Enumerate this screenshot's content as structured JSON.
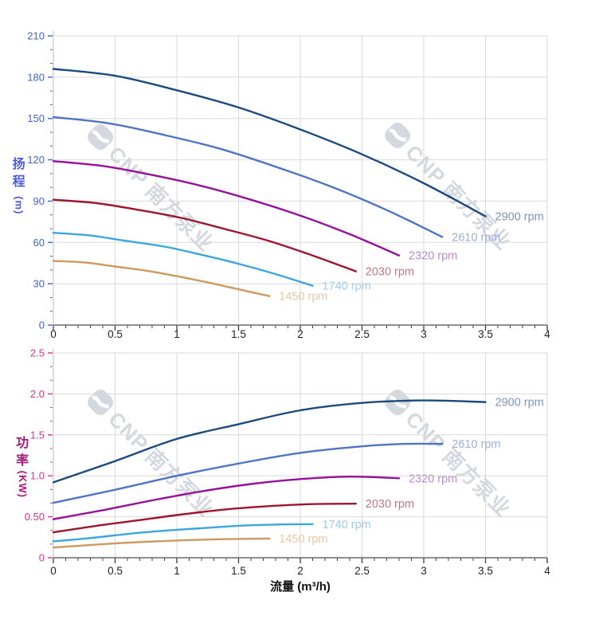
{
  "watermark": {
    "text": "CNP 南方泵业",
    "color": "#d4d8df",
    "logo": "cnp-wave-logo"
  },
  "chart_data": [
    {
      "type": "line",
      "name": "head-vs-flow",
      "title": "",
      "ylabel_chars": [
        "扬",
        "程"
      ],
      "ylabel_unit": "(m)",
      "xlabel": "",
      "axis_color": "#4164d0",
      "title_color": "#4b5bdb",
      "grid": true,
      "legend_position": "curve-ends",
      "xlim": [
        0,
        4
      ],
      "ylim": [
        0,
        210
      ],
      "x_major": 0.5,
      "x_minor_div": 5,
      "y_major": 30,
      "y_minor_div": 3,
      "x_tick_labels": [
        "0",
        "0.5",
        "1",
        "1.5",
        "2",
        "2.5",
        "3",
        "3.5",
        "4"
      ],
      "y_tick_labels": [
        "0",
        "30",
        "60",
        "90",
        "120",
        "150",
        "180",
        "210"
      ],
      "series": [
        {
          "name": "2900 rpm",
          "color": "#1b4a7e",
          "label_color": "#7e95bb",
          "points": [
            [
              0,
              186
            ],
            [
              0.5,
              181
            ],
            [
              1,
              170.5
            ],
            [
              1.5,
              158
            ],
            [
              2,
              142
            ],
            [
              2.5,
              124
            ],
            [
              3,
              103
            ],
            [
              3.5,
              79
            ]
          ]
        },
        {
          "name": "2610 rpm",
          "color": "#4f74c5",
          "label_color": "#a0aedd",
          "points": [
            [
              0,
              151
            ],
            [
              0.45,
              146.5
            ],
            [
              0.9,
              138
            ],
            [
              1.35,
              128
            ],
            [
              1.8,
              115
            ],
            [
              2.25,
              100.5
            ],
            [
              2.7,
              83.5
            ],
            [
              3.15,
              64
            ]
          ]
        },
        {
          "name": "2320 rpm",
          "color": "#970f9b",
          "label_color": "#bb8bce",
          "points": [
            [
              0,
              119
            ],
            [
              0.4,
              115.5
            ],
            [
              0.8,
              109
            ],
            [
              1.2,
              101
            ],
            [
              1.6,
              91
            ],
            [
              2,
              79.5
            ],
            [
              2.4,
              66
            ],
            [
              2.8,
              50.5
            ]
          ]
        },
        {
          "name": "2030 rpm",
          "color": "#9d152f",
          "label_color": "#bd7a86",
          "points": [
            [
              0,
              91
            ],
            [
              0.35,
              88.5
            ],
            [
              0.7,
              83.5
            ],
            [
              1.05,
              77.5
            ],
            [
              1.4,
              69.5
            ],
            [
              1.75,
              61
            ],
            [
              2.1,
              50.5
            ],
            [
              2.45,
              39
            ]
          ]
        },
        {
          "name": "1740 rpm",
          "color": "#3aa6de",
          "label_color": "#9fcbec",
          "points": [
            [
              0,
              67
            ],
            [
              0.3,
              65
            ],
            [
              0.6,
              61
            ],
            [
              0.9,
              57
            ],
            [
              1.2,
              51
            ],
            [
              1.5,
              44.5
            ],
            [
              1.8,
              37
            ],
            [
              2.1,
              28.5
            ]
          ]
        },
        {
          "name": "1450 rpm",
          "color": "#cd9a60",
          "label_color": "#e5c9a2",
          "points": [
            [
              0,
              46.5
            ],
            [
              0.25,
              45.5
            ],
            [
              0.5,
              42.5
            ],
            [
              0.75,
              39.5
            ],
            [
              1,
              35.5
            ],
            [
              1.25,
              31
            ],
            [
              1.5,
              26
            ],
            [
              1.75,
              21
            ]
          ]
        }
      ]
    },
    {
      "type": "line",
      "name": "power-vs-flow",
      "title": "",
      "ylabel_chars": [
        "功",
        "率"
      ],
      "ylabel_unit": "(KW)",
      "xlabel": "流量 (m³/h)",
      "xlabel_color": "#111111",
      "axis_color": "#d8358f",
      "title_color": "#a8187a",
      "grid": true,
      "legend_position": "curve-ends",
      "xlim": [
        0,
        4
      ],
      "ylim": [
        0,
        2.5
      ],
      "x_major": 0.5,
      "x_minor_div": 5,
      "y_major": 0.5,
      "y_minor_div": 3,
      "x_tick_labels": [
        "0",
        "0.5",
        "1",
        "1.5",
        "2",
        "2.5",
        "3",
        "3.5",
        "4"
      ],
      "y_tick_labels": [
        "0",
        "0.50",
        "1.0",
        "1.5",
        "2.0",
        "2.5"
      ],
      "series": [
        {
          "name": "2900 rpm",
          "color": "#1b4a7e",
          "label_color": "#7e95bb",
          "points": [
            [
              0,
              0.92
            ],
            [
              0.5,
              1.18
            ],
            [
              1,
              1.45
            ],
            [
              1.5,
              1.63
            ],
            [
              2,
              1.8
            ],
            [
              2.5,
              1.89
            ],
            [
              3,
              1.92
            ],
            [
              3.5,
              1.9
            ]
          ]
        },
        {
          "name": "2610 rpm",
          "color": "#4f74c5",
          "label_color": "#a0aedd",
          "points": [
            [
              0,
              0.67
            ],
            [
              0.5,
              0.83
            ],
            [
              1,
              1.0
            ],
            [
              1.5,
              1.15
            ],
            [
              2,
              1.28
            ],
            [
              2.5,
              1.36
            ],
            [
              2.85,
              1.39
            ],
            [
              3.15,
              1.39
            ]
          ]
        },
        {
          "name": "2320 rpm",
          "color": "#970f9b",
          "label_color": "#bb8bce",
          "points": [
            [
              0,
              0.47
            ],
            [
              0.4,
              0.58
            ],
            [
              0.8,
              0.7
            ],
            [
              1.2,
              0.81
            ],
            [
              1.6,
              0.9
            ],
            [
              2,
              0.96
            ],
            [
              2.4,
              0.99
            ],
            [
              2.8,
              0.97
            ]
          ]
        },
        {
          "name": "2030 rpm",
          "color": "#9d152f",
          "label_color": "#bd7a86",
          "points": [
            [
              0,
              0.31
            ],
            [
              0.35,
              0.39
            ],
            [
              0.7,
              0.46
            ],
            [
              1.05,
              0.53
            ],
            [
              1.4,
              0.59
            ],
            [
              1.75,
              0.63
            ],
            [
              2.1,
              0.655
            ],
            [
              2.45,
              0.66
            ]
          ]
        },
        {
          "name": "1740 rpm",
          "color": "#3aa6de",
          "label_color": "#9fcbec",
          "points": [
            [
              0,
              0.2
            ],
            [
              0.3,
              0.24
            ],
            [
              0.6,
              0.29
            ],
            [
              0.9,
              0.33
            ],
            [
              1.2,
              0.36
            ],
            [
              1.5,
              0.39
            ],
            [
              1.8,
              0.405
            ],
            [
              2.1,
              0.41
            ]
          ]
        },
        {
          "name": "1450 rpm",
          "color": "#cd9a60",
          "label_color": "#e5c9a2",
          "points": [
            [
              0,
              0.125
            ],
            [
              0.25,
              0.15
            ],
            [
              0.5,
              0.175
            ],
            [
              0.75,
              0.195
            ],
            [
              1,
              0.21
            ],
            [
              1.25,
              0.222
            ],
            [
              1.5,
              0.23
            ],
            [
              1.75,
              0.233
            ]
          ]
        }
      ]
    }
  ]
}
